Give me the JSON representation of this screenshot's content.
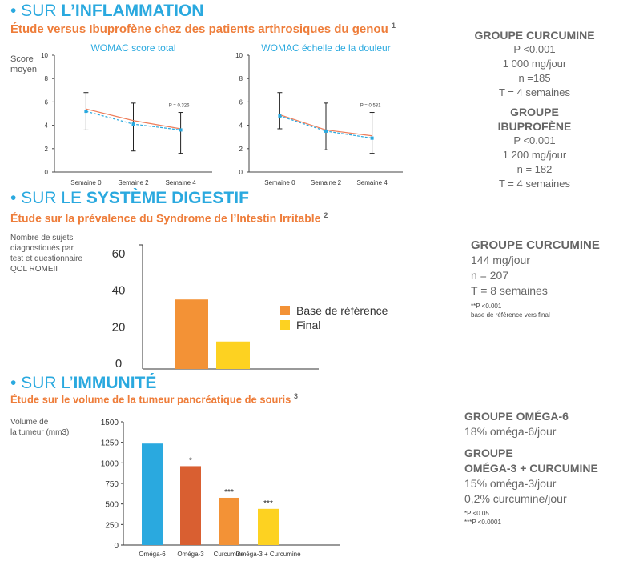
{
  "sections": {
    "inflammation": {
      "prefix": "• SUR ",
      "strong": "L’INFLAMMATION",
      "study": "Étude versus Ibuprofène chez des patients arthrosiques du genou",
      "ref": "1"
    },
    "digestif": {
      "prefix": "• SUR LE ",
      "strong": "SYSTÈME DIGESTIF",
      "study": "Étude sur la prévalence du Syndrome de l’Intestin Irritable",
      "ref": "2"
    },
    "immunite": {
      "prefix": "• SUR L’",
      "strong": "IMMUNITÉ",
      "study": "Étude sur le volume de la tumeur pancréatique de souris",
      "ref": "3"
    }
  },
  "womac_ylabel": "Score\nmoyen",
  "groups_inflammation": [
    {
      "title": "GROUPE CURCUMINE",
      "lines": [
        "P <0.001",
        "1 000 mg/jour",
        "n =185",
        "T = 4 semaines"
      ]
    },
    {
      "title": "GROUPE IBUPROFÈNE",
      "lines": [
        "P <0.001",
        "1 200 mg/jour",
        "n = 182",
        "T = 4 semaines"
      ]
    }
  ],
  "group_digestif": {
    "title": "GROUPE CURCUMINE",
    "lines": [
      "144 mg/jour",
      "n = 207",
      "T = 8 semaines"
    ],
    "notes": [
      "**P <0.001",
      "base de référence vers final"
    ]
  },
  "groups_immunite": {
    "blocks": [
      {
        "title": [
          "GROUPE OMÉGA-6"
        ],
        "lines": [
          "18% oméga-6/jour"
        ]
      },
      {
        "title": [
          "GROUPE",
          "OMÉGA-3 + CURCUMINE"
        ],
        "lines": [
          "15% oméga-3/jour",
          "0,2% curcumine/jour"
        ]
      }
    ],
    "notes": [
      "*P <0.05",
      "***P <0.0001"
    ]
  },
  "digestif_ylabel": "Nombre de sujets\ndiagnostiqués par\ntest et questionnaire\nQOL ROMEII",
  "immunite_ylabel": "Volume de\nla tumeur (mm3)",
  "chart_data": [
    {
      "type": "line",
      "title": "WOMAC score total",
      "categories": [
        "Semaine 0",
        "Semaine 2",
        "Semaine 4"
      ],
      "ylim": [
        0,
        10
      ],
      "yticks": [
        0,
        2,
        4,
        6,
        8,
        10
      ],
      "series": [
        {
          "color": "#ee7d5a",
          "dash": false,
          "values": [
            5.4,
            4.4,
            3.7
          ]
        },
        {
          "color": "#2aa9df",
          "dash": true,
          "values": [
            5.2,
            4.1,
            3.6
          ]
        }
      ],
      "error_bars": [
        [
          3.6,
          6.8
        ],
        [
          1.8,
          5.9
        ],
        [
          1.6,
          5.1
        ]
      ],
      "annotation": "P = 0.326"
    },
    {
      "type": "line",
      "title": "WOMAC échelle de la douleur",
      "categories": [
        "Semaine 0",
        "Semaine 2",
        "Semaine 4"
      ],
      "ylim": [
        0,
        10
      ],
      "yticks": [
        0,
        2,
        4,
        6,
        8,
        10
      ],
      "series": [
        {
          "color": "#ee7d5a",
          "dash": false,
          "values": [
            4.9,
            3.6,
            3.1
          ]
        },
        {
          "color": "#2aa9df",
          "dash": true,
          "values": [
            4.8,
            3.5,
            2.9
          ]
        }
      ],
      "error_bars": [
        [
          3.7,
          6.8
        ],
        [
          1.9,
          5.9
        ],
        [
          1.6,
          5.1
        ]
      ],
      "annotation": "P = 0.531"
    },
    {
      "type": "bar",
      "categories": [
        "Base de référence",
        "Final"
      ],
      "values": [
        38,
        15
      ],
      "colors": [
        "#f39236",
        "#fdd221"
      ],
      "ylim": [
        0,
        60
      ],
      "yticks": [
        0,
        20,
        40,
        60
      ],
      "legend": [
        "Base de référence",
        "Final"
      ],
      "legend_position": "right"
    },
    {
      "type": "bar",
      "categories": [
        "Oméga-6",
        "Oméga-3",
        "Curcumine",
        "Oméga-3 + Curcumine"
      ],
      "values": [
        1235,
        960,
        575,
        440
      ],
      "colors": [
        "#2aa9df",
        "#d95f31",
        "#f39236",
        "#fdd221"
      ],
      "labels": [
        "",
        "*",
        "***",
        "***"
      ],
      "ylim": [
        0,
        1500
      ],
      "yticks": [
        0,
        250,
        500,
        750,
        1000,
        1250,
        1500
      ]
    }
  ]
}
